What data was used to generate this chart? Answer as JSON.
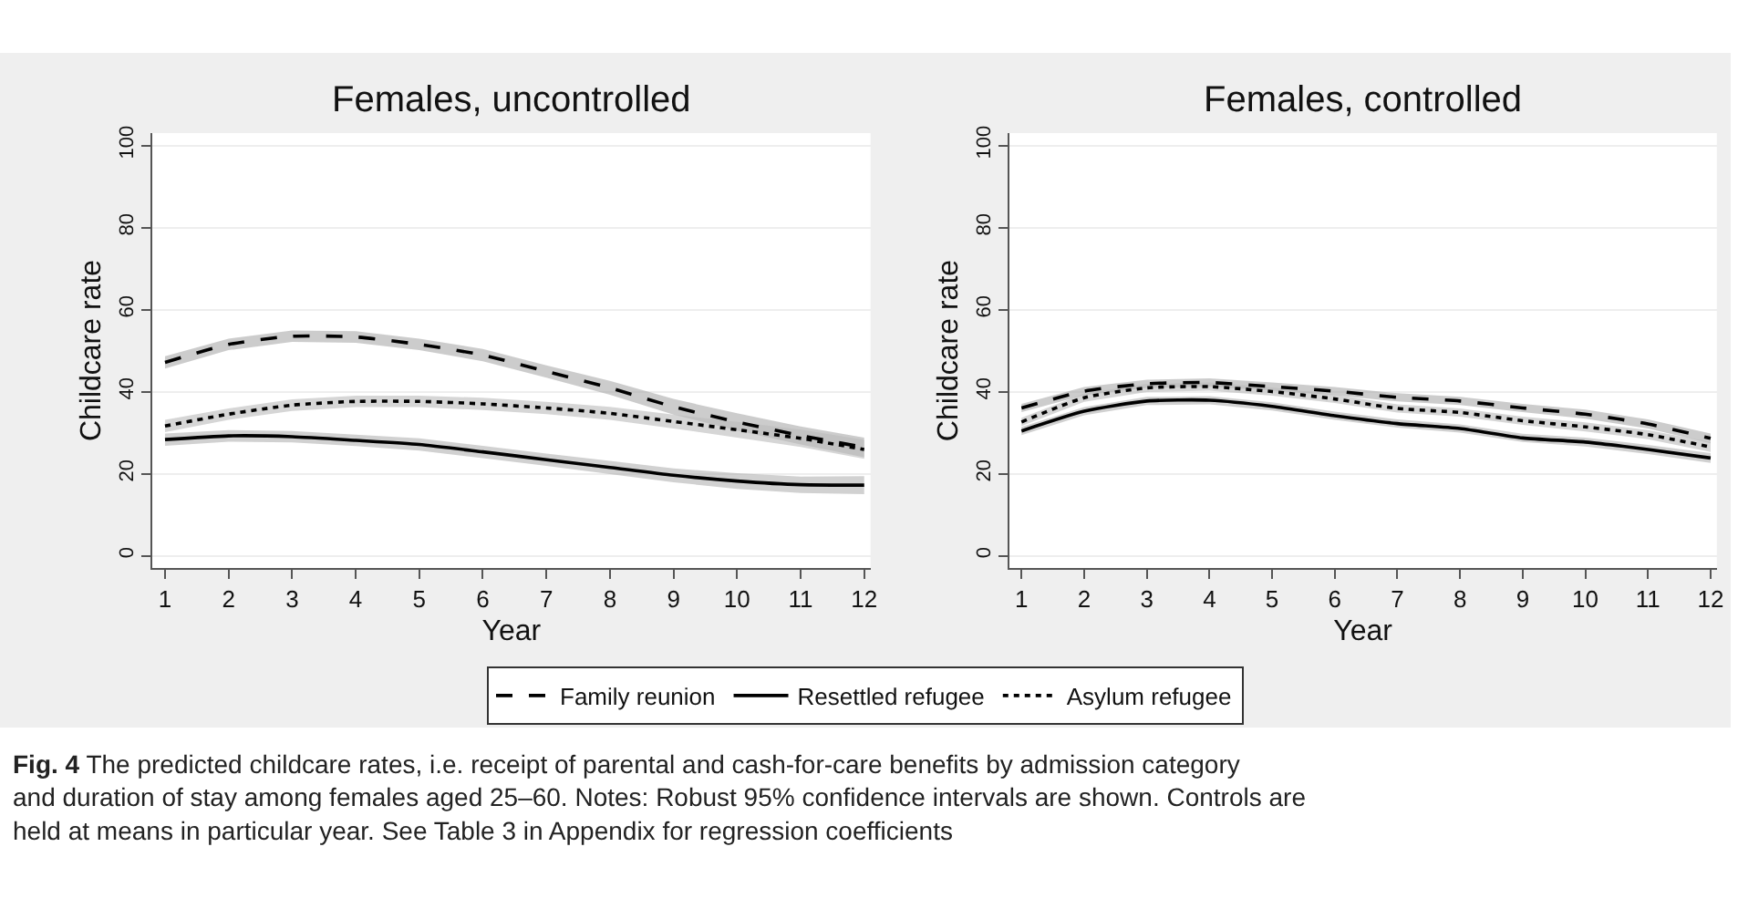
{
  "chart_data": [
    {
      "type": "line",
      "title": "Females, uncontrolled",
      "xlabel": "Year",
      "ylabel": "Childcare rate",
      "x": [
        1,
        2,
        3,
        4,
        5,
        6,
        7,
        8,
        9,
        10,
        11,
        12
      ],
      "xlim": [
        0.8,
        12.1
      ],
      "xticks": [
        1,
        2,
        3,
        4,
        5,
        6,
        7,
        8,
        9,
        10,
        11,
        12
      ],
      "ylim": [
        -3,
        103
      ],
      "yticks": [
        0,
        20,
        40,
        60,
        80,
        100
      ],
      "grid": "y",
      "legend": "bottom",
      "series": [
        {
          "name": "Family reunion",
          "color": "#000000",
          "line_style": "dashed",
          "values": [
            47.1,
            51.5,
            53.5,
            53.3,
            51.5,
            48.9,
            44.9,
            40.9,
            36.3,
            32.6,
            29.3,
            26.4
          ],
          "lower": [
            45.6,
            50.1,
            52.1,
            51.9,
            50.1,
            47.4,
            43.4,
            39.2,
            34.4,
            30.5,
            27.1,
            24.0
          ],
          "upper": [
            48.6,
            52.9,
            54.9,
            54.7,
            52.9,
            50.4,
            46.4,
            42.6,
            38.2,
            34.7,
            31.5,
            28.8
          ]
        },
        {
          "name": "Resettled refugee",
          "color": "#000000",
          "line_style": "solid",
          "values": [
            28.3,
            29.2,
            29.0,
            28.1,
            27.1,
            25.3,
            23.4,
            21.5,
            19.6,
            18.2,
            17.3,
            17.2
          ],
          "lower": [
            26.8,
            27.8,
            27.6,
            26.7,
            25.6,
            23.8,
            21.9,
            19.9,
            17.9,
            16.3,
            15.3,
            15.0
          ],
          "upper": [
            29.8,
            30.6,
            30.4,
            29.5,
            28.6,
            26.8,
            24.9,
            23.1,
            21.3,
            20.1,
            19.3,
            19.4
          ]
        },
        {
          "name": "Asylum refugee",
          "color": "#000000",
          "line_style": "dotted",
          "values": [
            31.6,
            34.5,
            36.7,
            37.6,
            37.6,
            37.0,
            36.0,
            34.7,
            32.7,
            30.7,
            28.6,
            25.9
          ],
          "lower": [
            30.1,
            33.1,
            35.3,
            36.2,
            36.2,
            35.5,
            34.5,
            33.1,
            31.0,
            28.8,
            26.5,
            23.6
          ],
          "upper": [
            33.1,
            35.9,
            38.1,
            39.0,
            39.0,
            38.5,
            37.5,
            36.3,
            34.4,
            32.6,
            30.7,
            28.2
          ]
        }
      ],
      "annotations": [
        "Fig. 4 The predicted childcare rates, i.e. receipt of parental and cash-for-care benefits by admission category and duration of stay among females aged 25–60. Notes: Robust 95% confidence intervals are shown. Controls are held at means in particular year. See Table 3 in Appendix for regression coefficients"
      ]
    },
    {
      "type": "line",
      "title": "Females, controlled",
      "xlabel": "Year",
      "ylabel": "Childcare rate",
      "x": [
        1,
        2,
        3,
        4,
        5,
        6,
        7,
        8,
        9,
        10,
        11,
        12
      ],
      "xlim": [
        0.8,
        12.1
      ],
      "xticks": [
        1,
        2,
        3,
        4,
        5,
        6,
        7,
        8,
        9,
        10,
        11,
        12
      ],
      "ylim": [
        -3,
        103
      ],
      "yticks": [
        0,
        20,
        40,
        60,
        80,
        100
      ],
      "grid": "y",
      "legend": "bottom",
      "series": [
        {
          "color": "#000000",
          "line_style": "dashed",
          "values": [
            36.0,
            40.1,
            41.9,
            42.2,
            41.2,
            40.1,
            38.6,
            37.7,
            36.0,
            34.5,
            32.1,
            28.6
          ],
          "lower": [
            35.0,
            39.1,
            40.9,
            41.2,
            40.2,
            39.1,
            37.6,
            36.7,
            35.0,
            33.4,
            31.0,
            27.4
          ],
          "upper": [
            37.0,
            41.1,
            42.9,
            43.2,
            42.2,
            41.1,
            39.6,
            38.7,
            37.0,
            35.6,
            33.2,
            29.8
          ]
        },
        {
          "color": "#000000",
          "line_style": "solid",
          "values": [
            30.4,
            35.2,
            37.7,
            37.9,
            36.4,
            34.1,
            32.2,
            31.0,
            28.7,
            27.7,
            25.9,
            23.8
          ],
          "lower": [
            29.4,
            34.2,
            36.7,
            36.9,
            35.4,
            33.1,
            31.2,
            30.0,
            27.7,
            26.6,
            24.8,
            22.6
          ],
          "upper": [
            31.4,
            36.2,
            38.7,
            38.9,
            37.4,
            35.1,
            33.2,
            32.0,
            29.7,
            28.8,
            27.0,
            25.0
          ]
        },
        {
          "color": "#000000",
          "line_style": "dotted",
          "values": [
            32.6,
            38.5,
            40.9,
            41.2,
            40.0,
            38.2,
            35.9,
            34.9,
            32.9,
            31.4,
            29.5,
            26.5
          ],
          "lower": [
            31.6,
            37.5,
            39.9,
            40.2,
            39.0,
            37.2,
            34.9,
            33.9,
            31.9,
            30.3,
            28.4,
            25.3
          ],
          "upper": [
            33.6,
            39.5,
            41.9,
            42.2,
            41.0,
            39.2,
            36.9,
            35.9,
            33.9,
            32.5,
            30.6,
            27.7
          ]
        }
      ]
    }
  ]
}
